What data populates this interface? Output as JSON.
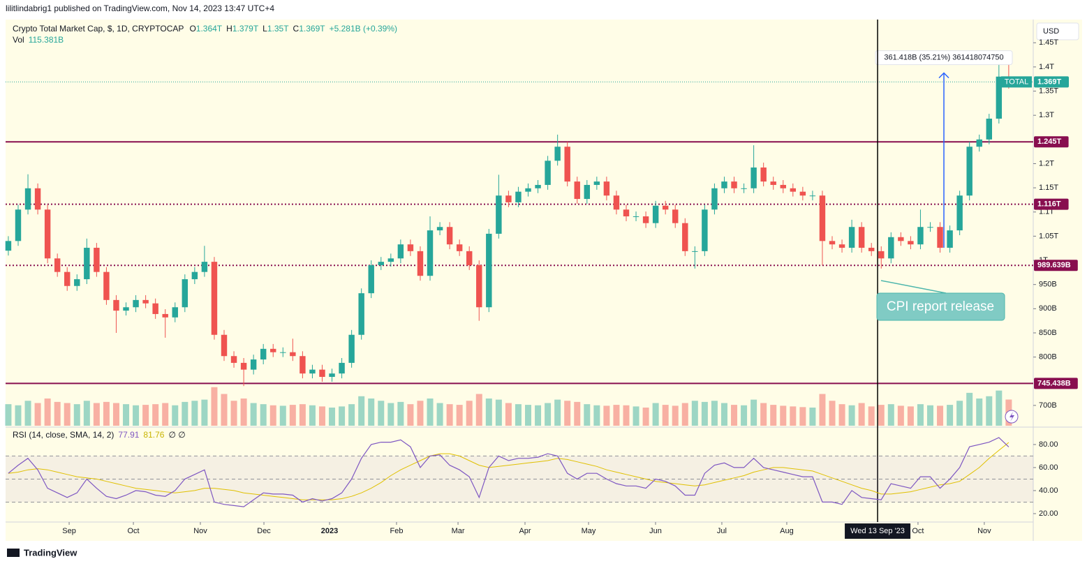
{
  "header": {
    "publisher": "lilitlindabrig1 published on TradingView.com, Nov 14, 2023 13:47 UTC+4"
  },
  "legend": {
    "symbol": "Crypto Total Market Cap, $, 1D, CRYPTOCAP",
    "ohlc": [
      {
        "key": "O",
        "value": "1.364T"
      },
      {
        "key": "H",
        "value": "1.379T"
      },
      {
        "key": "L",
        "value": "1.35T"
      },
      {
        "key": "C",
        "value": "1.369T"
      }
    ],
    "change": "+5.281B (+0.39%)",
    "vol_title": "Vol",
    "vol_value": "115.381B"
  },
  "currency": "USD",
  "footer": "TradingView",
  "chart_data": [
    {
      "type": "candlestick",
      "up_color": "#26a69a",
      "down_color": "#ef5350",
      "open": [
        1020,
        1040,
        1105,
        1149,
        1105,
        1004,
        976,
        947,
        961,
        1026,
        976,
        918,
        896,
        903,
        918,
        911,
        889,
        882,
        903,
        961,
        976,
        997,
        846,
        802,
        788,
        774,
        795,
        817,
        810,
        810,
        802,
        766,
        774,
        759,
        766,
        788,
        846,
        932,
        990,
        997,
        1004,
        1033,
        1019,
        968,
        1062,
        1069,
        1033,
        1019,
        990,
        903,
        1055,
        1134,
        1120,
        1142,
        1149,
        1156,
        1206,
        1235,
        1163,
        1127,
        1156,
        1163,
        1134,
        1105,
        1091,
        1091,
        1077,
        1113,
        1105,
        1077,
        1019,
        1019,
        1105,
        1149,
        1163,
        1149,
        1149,
        1192,
        1163,
        1156,
        1149,
        1142,
        1134,
        1134,
        1040,
        1033,
        1026,
        1069,
        1026,
        1019,
        1004,
        1048,
        1040,
        1033,
        1069,
        1069,
        1026,
        1062,
        1134,
        1235,
        1250,
        1293,
        1380
      ],
      "high": [
        1050,
        1115,
        1178,
        1159,
        1115,
        1014,
        986,
        971,
        1045,
        1036,
        986,
        928,
        913,
        928,
        928,
        921,
        899,
        913,
        971,
        986,
        1030,
        1007,
        856,
        812,
        798,
        805,
        827,
        827,
        820,
        838,
        812,
        784,
        784,
        776,
        798,
        856,
        942,
        1000,
        1007,
        1014,
        1043,
        1043,
        1029,
        1091,
        1079,
        1079,
        1043,
        1029,
        1000,
        1065,
        1177,
        1144,
        1152,
        1159,
        1166,
        1216,
        1260,
        1245,
        1173,
        1166,
        1173,
        1173,
        1144,
        1115,
        1101,
        1101,
        1123,
        1123,
        1115,
        1087,
        1029,
        1115,
        1159,
        1173,
        1173,
        1159,
        1238,
        1202,
        1173,
        1166,
        1159,
        1152,
        1144,
        1144,
        1050,
        1043,
        1084,
        1079,
        1036,
        1029,
        1058,
        1058,
        1050,
        1105,
        1079,
        1079,
        1072,
        1144,
        1245,
        1260,
        1303,
        1410,
        1420
      ],
      "low": [
        1010,
        1030,
        1095,
        1095,
        994,
        966,
        937,
        937,
        951,
        966,
        908,
        850,
        886,
        893,
        901,
        879,
        840,
        872,
        893,
        951,
        966,
        836,
        792,
        778,
        740,
        764,
        785,
        800,
        800,
        792,
        756,
        756,
        749,
        749,
        756,
        778,
        836,
        922,
        980,
        987,
        994,
        1009,
        958,
        958,
        1052,
        1023,
        1009,
        980,
        875,
        893,
        1045,
        1110,
        1110,
        1132,
        1139,
        1146,
        1196,
        1153,
        1117,
        1117,
        1146,
        1124,
        1095,
        1081,
        1081,
        1067,
        1067,
        1095,
        1067,
        1009,
        983,
        1009,
        1095,
        1139,
        1139,
        1139,
        1139,
        1153,
        1146,
        1139,
        1132,
        1124,
        1124,
        990,
        1023,
        1016,
        1016,
        1016,
        1009,
        983,
        994,
        1030,
        1023,
        1023,
        1059,
        1016,
        1016,
        1052,
        1124,
        1225,
        1240,
        1283,
        1355
      ],
      "close": [
        1040,
        1105,
        1149,
        1105,
        1004,
        976,
        947,
        961,
        1026,
        976,
        918,
        896,
        903,
        918,
        911,
        889,
        882,
        903,
        961,
        976,
        997,
        846,
        802,
        788,
        774,
        795,
        817,
        810,
        810,
        802,
        766,
        774,
        759,
        766,
        788,
        846,
        932,
        990,
        997,
        1004,
        1033,
        1019,
        968,
        1062,
        1069,
        1033,
        1019,
        990,
        903,
        1055,
        1134,
        1120,
        1142,
        1149,
        1156,
        1206,
        1235,
        1163,
        1127,
        1156,
        1163,
        1134,
        1105,
        1091,
        1091,
        1077,
        1113,
        1105,
        1077,
        1019,
        1019,
        1105,
        1149,
        1163,
        1149,
        1149,
        1192,
        1163,
        1156,
        1149,
        1142,
        1134,
        1134,
        1040,
        1033,
        1026,
        1069,
        1026,
        1019,
        1004,
        1048,
        1040,
        1033,
        1069,
        1069,
        1026,
        1062,
        1134,
        1235,
        1250,
        1293,
        1380,
        1369
      ],
      "volume": [
        95,
        90,
        110,
        100,
        120,
        105,
        100,
        95,
        110,
        100,
        105,
        100,
        95,
        90,
        92,
        95,
        100,
        90,
        105,
        110,
        115,
        170,
        140,
        110,
        120,
        100,
        95,
        90,
        88,
        92,
        95,
        90,
        85,
        80,
        85,
        95,
        130,
        120,
        110,
        100,
        105,
        95,
        110,
        120,
        100,
        95,
        92,
        110,
        140,
        120,
        115,
        100,
        95,
        92,
        90,
        100,
        115,
        110,
        105,
        95,
        90,
        88,
        92,
        90,
        85,
        80,
        100,
        92,
        88,
        100,
        110,
        105,
        110,
        100,
        92,
        90,
        115,
        100,
        92,
        88,
        85,
        82,
        80,
        140,
        110,
        95,
        90,
        100,
        85,
        92,
        95,
        88,
        85,
        95,
        90,
        88,
        92,
        110,
        145,
        120,
        130,
        155,
        115.381
      ],
      "vlim": [
        0,
        200
      ],
      "xlim": [
        -0.85,
        104.5
      ],
      "xticks": [
        {
          "value": 6.2,
          "label": "Sep"
        },
        {
          "value": 12.75,
          "label": "Oct"
        },
        {
          "value": 19.58,
          "label": "Nov"
        },
        {
          "value": 26.06,
          "label": "Dec"
        },
        {
          "value": 32.75,
          "label": "2023"
        },
        {
          "value": 39.58,
          "label": "Feb"
        },
        {
          "value": 45.85,
          "label": "Mar"
        },
        {
          "value": 52.68,
          "label": "Apr"
        },
        {
          "value": 59.16,
          "label": "May"
        },
        {
          "value": 65.99,
          "label": "Jun"
        },
        {
          "value": 72.75,
          "label": "Jul"
        },
        {
          "value": 79.37,
          "label": "Aug"
        },
        {
          "value": 92.75,
          "label": "Oct"
        },
        {
          "value": 99.51,
          "label": "Nov"
        }
      ],
      "ylim": [
        658,
        1498
      ],
      "yticks": [
        {
          "value": 1450,
          "label": "1.45T"
        },
        {
          "value": 1400,
          "label": "1.4T"
        },
        {
          "value": 1350,
          "label": "1.35T"
        },
        {
          "value": 1300,
          "label": "1.3T"
        },
        {
          "value": 1200,
          "label": "1.2T"
        },
        {
          "value": 1150,
          "label": "1.15T"
        },
        {
          "value": 1100,
          "label": "1.1T"
        },
        {
          "value": 1050,
          "label": "1.05T"
        },
        {
          "value": 1000,
          "label": "1T"
        },
        {
          "value": 950,
          "label": "950B"
        },
        {
          "value": 900,
          "label": "900B"
        },
        {
          "value": 850,
          "label": "850B"
        },
        {
          "value": 800,
          "label": "800B"
        },
        {
          "value": 700,
          "label": "700B"
        }
      ],
      "levels": [
        {
          "value": 1245,
          "label": "1.245T",
          "style": "solid",
          "color": "#880e4f"
        },
        {
          "value": 1116,
          "label": "1.116T",
          "style": "dotted",
          "color": "#880e4f"
        },
        {
          "value": 989.639,
          "label": "989.639B",
          "style": "dotted",
          "color": "#880e4f"
        },
        {
          "value": 745.438,
          "label": "745.438B",
          "style": "solid",
          "color": "#880e4f"
        }
      ],
      "last": {
        "value": 1369,
        "label": "1.369T",
        "name": "TOTAL",
        "color": "#26a69a"
      },
      "measure": {
        "x": 95.39,
        "from": 1026,
        "to": 1387.418,
        "label": "361.418B (35.21%) 361418074750",
        "color": "#2962ff"
      },
      "crosshair": {
        "x": 88.63,
        "label": "Wed 13 Sep '23"
      },
      "annotation": {
        "text": "CPI report release"
      }
    },
    {
      "type": "line",
      "title": "RSI (14, close, SMA, 14, 2)",
      "extra": "∅ ∅",
      "series": [
        {
          "color": "#7e57c2",
          "last_label": "77.91",
          "values": [
            55,
            62,
            68,
            58,
            42,
            38,
            34,
            38,
            50,
            42,
            35,
            33,
            36,
            40,
            39,
            36,
            35,
            40,
            50,
            54,
            58,
            30,
            28,
            27,
            26,
            32,
            38,
            37,
            37,
            36,
            30,
            33,
            31,
            33,
            38,
            50,
            68,
            80,
            82,
            82,
            84,
            78,
            60,
            70,
            71,
            62,
            58,
            52,
            34,
            60,
            70,
            66,
            68,
            68,
            69,
            72,
            70,
            55,
            50,
            55,
            55,
            50,
            46,
            44,
            44,
            42,
            50,
            48,
            44,
            36,
            36,
            55,
            62,
            64,
            60,
            60,
            68,
            60,
            58,
            56,
            54,
            52,
            52,
            30,
            30,
            28,
            40,
            34,
            33,
            32,
            46,
            44,
            42,
            52,
            52,
            42,
            50,
            60,
            78,
            80,
            82,
            86,
            77.91
          ]
        },
        {
          "color": "#e0c000",
          "last_label": "81.76",
          "values": [
            55,
            56,
            58,
            59,
            58,
            56,
            54,
            52,
            51,
            50,
            48,
            46,
            44,
            42,
            41,
            40,
            39,
            38,
            39,
            40,
            42,
            42,
            41,
            40,
            38,
            37,
            36,
            35,
            34,
            33,
            32,
            32,
            32,
            32,
            33,
            35,
            38,
            42,
            47,
            53,
            58,
            62,
            66,
            70,
            72,
            72,
            70,
            66,
            62,
            60,
            61,
            62,
            63,
            64,
            65,
            66,
            68,
            67,
            65,
            63,
            61,
            58,
            56,
            54,
            52,
            50,
            48,
            47,
            46,
            45,
            44,
            45,
            47,
            49,
            51,
            53,
            56,
            58,
            60,
            60,
            59,
            58,
            57,
            54,
            51,
            48,
            45,
            42,
            40,
            37,
            37,
            38,
            39,
            41,
            43,
            45,
            46,
            48,
            54,
            60,
            68,
            75,
            81.76
          ]
        }
      ],
      "bands": [
        70,
        50,
        30
      ],
      "ylim": [
        12.7,
        94.5
      ],
      "yticks": [
        {
          "value": 80,
          "label": "80.00"
        },
        {
          "value": 60,
          "label": "60.00"
        },
        {
          "value": 40,
          "label": "40.00"
        },
        {
          "value": 20,
          "label": "20.00"
        }
      ]
    }
  ]
}
